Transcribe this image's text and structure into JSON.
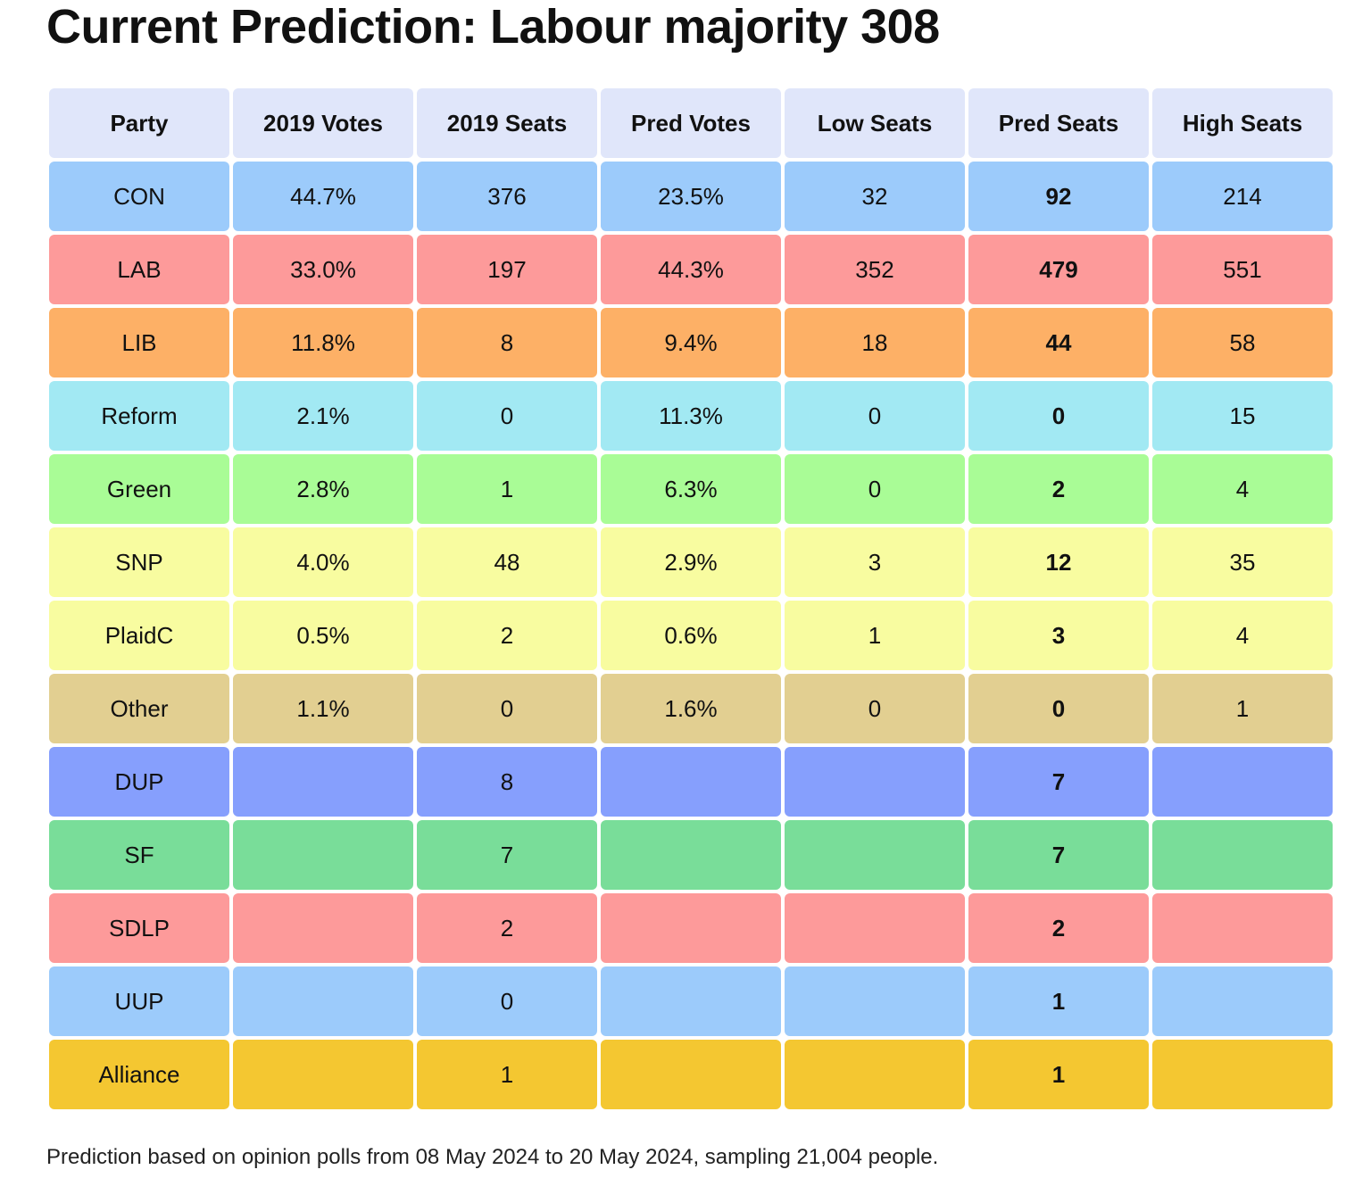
{
  "header": {
    "title": "Current Prediction: Labour majority 308"
  },
  "table": {
    "header_color": "#e0e6fa",
    "bold_column": 5,
    "columns": [
      "Party",
      "2019 Votes",
      "2019 Seats",
      "Pred Votes",
      "Low Seats",
      "Pred Seats",
      "High Seats"
    ],
    "rows": [
      {
        "color": "#9ccbfb",
        "cells": [
          "CON",
          "44.7%",
          376,
          "23.5%",
          32,
          92,
          214
        ]
      },
      {
        "color": "#fd9a9a",
        "cells": [
          "LAB",
          "33.0%",
          197,
          "44.3%",
          352,
          479,
          551
        ]
      },
      {
        "color": "#fdb066",
        "cells": [
          "LIB",
          "11.8%",
          8,
          "9.4%",
          18,
          44,
          58
        ]
      },
      {
        "color": "#a2e9f3",
        "cells": [
          "Reform",
          "2.1%",
          0,
          "11.3%",
          0,
          0,
          15
        ]
      },
      {
        "color": "#a9fc96",
        "cells": [
          "Green",
          "2.8%",
          1,
          "6.3%",
          0,
          2,
          4
        ]
      },
      {
        "color": "#f8fca0",
        "cells": [
          "SNP",
          "4.0%",
          48,
          "2.9%",
          3,
          12,
          35
        ]
      },
      {
        "color": "#f8fca0",
        "cells": [
          "PlaidC",
          "0.5%",
          2,
          "0.6%",
          1,
          3,
          4
        ]
      },
      {
        "color": "#e2cf91",
        "cells": [
          "Other",
          "1.1%",
          0,
          "1.6%",
          0,
          0,
          1
        ]
      },
      {
        "color": "#869ffd",
        "cells": [
          "DUP",
          null,
          8,
          null,
          null,
          7,
          null
        ]
      },
      {
        "color": "#79dd99",
        "cells": [
          "SF",
          null,
          7,
          null,
          null,
          7,
          null
        ]
      },
      {
        "color": "#fd9a9a",
        "cells": [
          "SDLP",
          null,
          2,
          null,
          null,
          2,
          null
        ]
      },
      {
        "color": "#9ccbfb",
        "cells": [
          "UUP",
          null,
          0,
          null,
          null,
          1,
          null
        ]
      },
      {
        "color": "#f4c731",
        "cells": [
          "Alliance",
          null,
          1,
          null,
          null,
          1,
          null
        ]
      }
    ]
  },
  "footer": {
    "note": "Prediction based on opinion polls from 08 May 2024 to 20 May 2024, sampling 21,004 people."
  }
}
